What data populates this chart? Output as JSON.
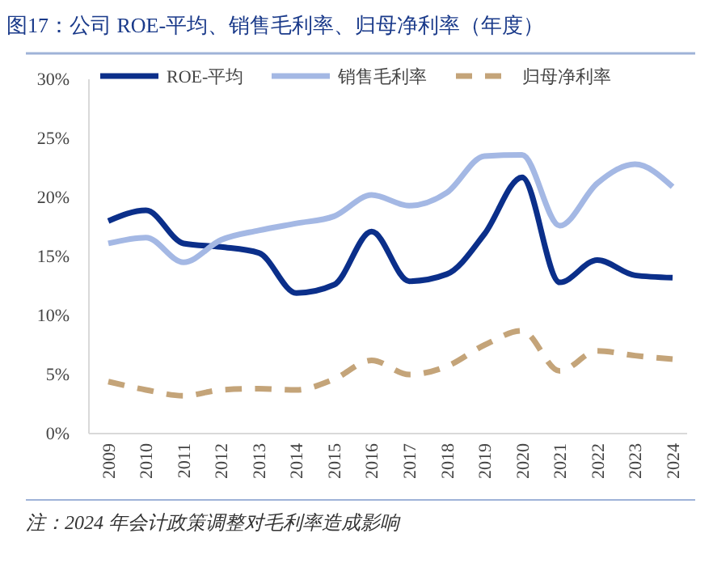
{
  "chart_data": {
    "type": "line",
    "title": "图17：公司 ROE-平均、销售毛利率、归母净利率（年度）",
    "categories": [
      "2009",
      "2010",
      "2011",
      "2012",
      "2013",
      "2014",
      "2015",
      "2016",
      "2017",
      "2018",
      "2019",
      "2020",
      "2021",
      "2022",
      "2023",
      "2024"
    ],
    "series": [
      {
        "name": "ROE-平均",
        "color": "#0b2f8a",
        "line_style": "solid",
        "values": [
          18.0,
          18.9,
          16.1,
          15.8,
          15.3,
          11.9,
          12.6,
          17.1,
          12.9,
          13.5,
          16.9,
          21.7,
          12.8,
          14.7,
          13.4,
          13.2
        ]
      },
      {
        "name": "销售毛利率",
        "color": "#a4b8e4",
        "line_style": "solid",
        "values": [
          16.1,
          16.6,
          14.5,
          16.4,
          17.2,
          17.8,
          18.4,
          20.2,
          19.3,
          20.4,
          23.5,
          23.6,
          17.6,
          21.2,
          22.8,
          20.9
        ]
      },
      {
        "name": "归母净利率",
        "color": "#c4a479",
        "line_style": "dashed",
        "values": [
          4.4,
          3.7,
          3.2,
          3.7,
          3.8,
          3.7,
          4.6,
          6.2,
          5.0,
          5.7,
          7.5,
          8.7,
          5.3,
          7.0,
          6.6,
          6.3
        ]
      }
    ],
    "ylim": [
      0,
      30
    ],
    "yticks": [
      {
        "value": 0,
        "label": "0%"
      },
      {
        "value": 5,
        "label": "5%"
      },
      {
        "value": 10,
        "label": "10%"
      },
      {
        "value": 15,
        "label": "15%"
      },
      {
        "value": 20,
        "label": "20%"
      },
      {
        "value": 25,
        "label": "25%"
      },
      {
        "value": 30,
        "label": "30%"
      }
    ],
    "grid": false,
    "legend": "top",
    "marker": "none",
    "annotations": [
      "注：2024 年会计政策调整对毛利率造成影响"
    ]
  }
}
